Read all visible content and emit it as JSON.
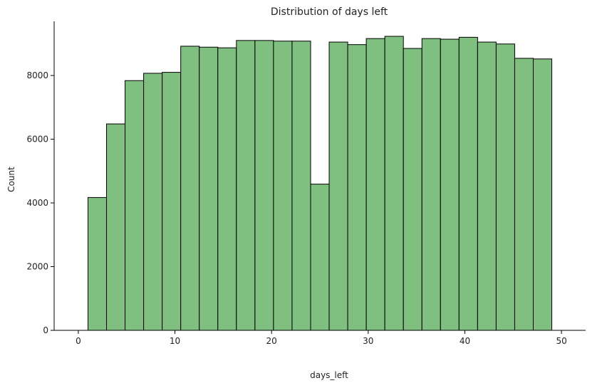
{
  "chart_data": {
    "type": "bar",
    "title": "Distribution of days left",
    "xlabel": "days_left",
    "ylabel": "Count",
    "xlim": [
      -2.5,
      52.5
    ],
    "ylim": [
      0,
      9700
    ],
    "xticks": [
      0,
      10,
      20,
      30,
      40,
      50
    ],
    "yticks": [
      0,
      2000,
      4000,
      6000,
      8000
    ],
    "grid": false,
    "bar_color": "#7fbf7f",
    "edge_color": "#000000",
    "bins": [
      {
        "start": 1.0,
        "end": 2.92,
        "value": 4170
      },
      {
        "start": 2.92,
        "end": 4.84,
        "value": 6480
      },
      {
        "start": 4.84,
        "end": 6.76,
        "value": 7840
      },
      {
        "start": 6.76,
        "end": 8.68,
        "value": 8070
      },
      {
        "start": 8.68,
        "end": 10.6,
        "value": 8100
      },
      {
        "start": 10.6,
        "end": 12.52,
        "value": 8920
      },
      {
        "start": 12.52,
        "end": 14.44,
        "value": 8890
      },
      {
        "start": 14.44,
        "end": 16.36,
        "value": 8870
      },
      {
        "start": 16.36,
        "end": 18.28,
        "value": 9100
      },
      {
        "start": 18.28,
        "end": 20.2,
        "value": 9100
      },
      {
        "start": 20.2,
        "end": 22.12,
        "value": 9080
      },
      {
        "start": 22.12,
        "end": 24.04,
        "value": 9080
      },
      {
        "start": 24.04,
        "end": 25.96,
        "value": 4590
      },
      {
        "start": 25.96,
        "end": 27.88,
        "value": 9050
      },
      {
        "start": 27.88,
        "end": 29.8,
        "value": 8970
      },
      {
        "start": 29.8,
        "end": 31.72,
        "value": 9160
      },
      {
        "start": 31.72,
        "end": 33.64,
        "value": 9230
      },
      {
        "start": 33.64,
        "end": 35.56,
        "value": 8850
      },
      {
        "start": 35.56,
        "end": 37.48,
        "value": 9160
      },
      {
        "start": 37.48,
        "end": 39.4,
        "value": 9140
      },
      {
        "start": 39.4,
        "end": 41.32,
        "value": 9200
      },
      {
        "start": 41.32,
        "end": 43.24,
        "value": 9050
      },
      {
        "start": 43.24,
        "end": 45.16,
        "value": 8990
      },
      {
        "start": 45.16,
        "end": 47.08,
        "value": 8540
      },
      {
        "start": 47.08,
        "end": 49.0,
        "value": 8520
      }
    ]
  }
}
